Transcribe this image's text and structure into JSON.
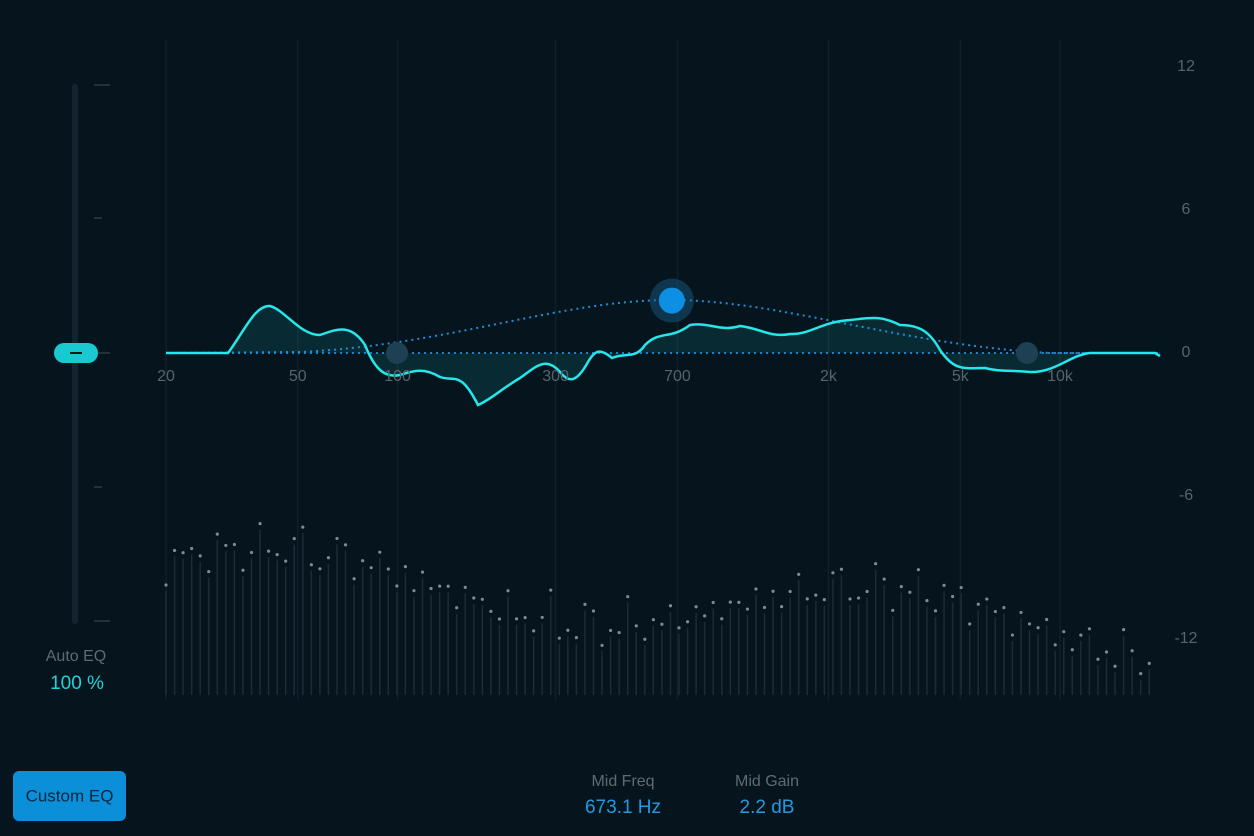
{
  "eq_graph": {
    "x_log_scale": true,
    "xlim": [
      20,
      10000
    ],
    "xticks": [
      20,
      50,
      100,
      300,
      700,
      {
        "value": 2000,
        "label": "2k"
      },
      {
        "value": 5000,
        "label": "5k"
      },
      {
        "value": 10000,
        "label": "10k"
      }
    ],
    "ylim": [
      -12,
      12
    ],
    "yticks": [
      12,
      6,
      0,
      -6,
      -12
    ]
  },
  "auto_eq": {
    "label": "Auto EQ",
    "value": "100 %"
  },
  "button": "Custom EQ",
  "readouts": [
    {
      "label": "Mid Freq",
      "value": {
        "value": 673.1,
        "label": "673.1 Hz"
      }
    },
    {
      "label": "Mid Gain",
      "value": {
        "value": 2.2,
        "label": "2.2 dB"
      }
    }
  ]
}
